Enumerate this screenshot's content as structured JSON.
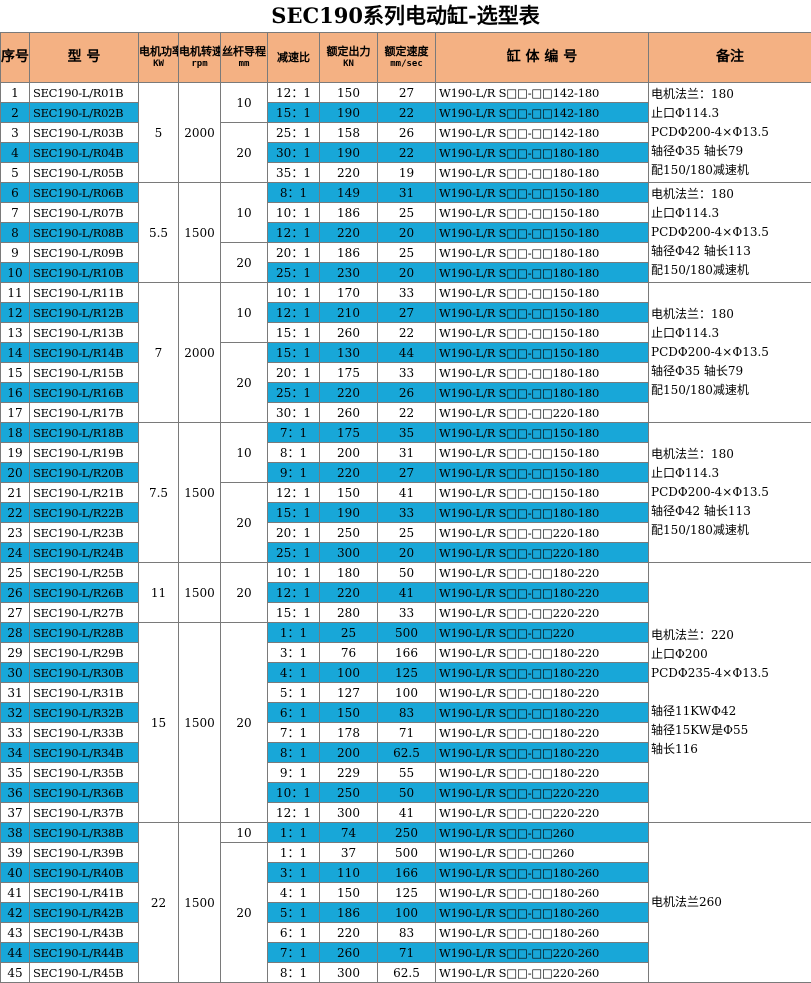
{
  "title": "SEC190系列电动缸-选型表",
  "headers": {
    "index": "序号",
    "model": "型  号",
    "power": "电机功率",
    "power_unit": "KW",
    "speed": "电机转速",
    "speed_unit": "rpm",
    "lead": "丝杆导程",
    "lead_unit": "mm",
    "ratio": "减速比",
    "force": "额定出力",
    "force_unit": "KN",
    "velocity": "额定速度",
    "velocity_unit": "mm/sec",
    "code": "缸 体 编 号",
    "note": "备注"
  },
  "highlight_color": "#18a7d8",
  "header_color": "#f4b183",
  "rows": [
    {
      "no": "1",
      "model": "SEC190-L/R01B",
      "ratio": "12：1",
      "force": "150",
      "vel": "27",
      "code": "W190-L/R S□□-□□142-180",
      "hl": false
    },
    {
      "no": "2",
      "model": "SEC190-L/R02B",
      "ratio": "15：1",
      "force": "190",
      "vel": "22",
      "code": "W190-L/R S□□-□□142-180",
      "hl": true
    },
    {
      "no": "3",
      "model": "SEC190-L/R03B",
      "ratio": "25：1",
      "force": "158",
      "vel": "26",
      "code": "W190-L/R S□□-□□142-180",
      "hl": false
    },
    {
      "no": "4",
      "model": "SEC190-L/R04B",
      "ratio": "30：1",
      "force": "190",
      "vel": "22",
      "code": "W190-L/R S□□-□□180-180",
      "hl": true
    },
    {
      "no": "5",
      "model": "SEC190-L/R05B",
      "ratio": "35：1",
      "force": "220",
      "vel": "19",
      "code": "W190-L/R S□□-□□180-180",
      "hl": false
    },
    {
      "no": "6",
      "model": "SEC190-L/R06B",
      "ratio": "8：1",
      "force": "149",
      "vel": "31",
      "code": "W190-L/R S□□-□□150-180",
      "hl": true
    },
    {
      "no": "7",
      "model": "SEC190-L/R07B",
      "ratio": "10：1",
      "force": "186",
      "vel": "25",
      "code": "W190-L/R S□□-□□150-180",
      "hl": false
    },
    {
      "no": "8",
      "model": "SEC190-L/R08B",
      "ratio": "12：1",
      "force": "220",
      "vel": "20",
      "code": "W190-L/R S□□-□□150-180",
      "hl": true
    },
    {
      "no": "9",
      "model": "SEC190-L/R09B",
      "ratio": "20：1",
      "force": "186",
      "vel": "25",
      "code": "W190-L/R S□□-□□180-180",
      "hl": false
    },
    {
      "no": "10",
      "model": "SEC190-L/R10B",
      "ratio": "25：1",
      "force": "230",
      "vel": "20",
      "code": "W190-L/R S□□-□□180-180",
      "hl": true
    },
    {
      "no": "11",
      "model": "SEC190-L/R11B",
      "ratio": "10：1",
      "force": "170",
      "vel": "33",
      "code": "W190-L/R S□□-□□150-180",
      "hl": false
    },
    {
      "no": "12",
      "model": "SEC190-L/R12B",
      "ratio": "12：1",
      "force": "210",
      "vel": "27",
      "code": "W190-L/R S□□-□□150-180",
      "hl": true
    },
    {
      "no": "13",
      "model": "SEC190-L/R13B",
      "ratio": "15：1",
      "force": "260",
      "vel": "22",
      "code": "W190-L/R S□□-□□150-180",
      "hl": false
    },
    {
      "no": "14",
      "model": "SEC190-L/R14B",
      "ratio": "15：1",
      "force": "130",
      "vel": "44",
      "code": "W190-L/R S□□-□□150-180",
      "hl": true
    },
    {
      "no": "15",
      "model": "SEC190-L/R15B",
      "ratio": "20：1",
      "force": "175",
      "vel": "33",
      "code": "W190-L/R S□□-□□180-180",
      "hl": false
    },
    {
      "no": "16",
      "model": "SEC190-L/R16B",
      "ratio": "25：1",
      "force": "220",
      "vel": "26",
      "code": "W190-L/R S□□-□□180-180",
      "hl": true
    },
    {
      "no": "17",
      "model": "SEC190-L/R17B",
      "ratio": "30：1",
      "force": "260",
      "vel": "22",
      "code": "W190-L/R S□□-□□220-180",
      "hl": false
    },
    {
      "no": "18",
      "model": "SEC190-L/R18B",
      "ratio": "7：1",
      "force": "175",
      "vel": "35",
      "code": "W190-L/R S□□-□□150-180",
      "hl": true
    },
    {
      "no": "19",
      "model": "SEC190-L/R19B",
      "ratio": "8：1",
      "force": "200",
      "vel": "31",
      "code": "W190-L/R S□□-□□150-180",
      "hl": false
    },
    {
      "no": "20",
      "model": "SEC190-L/R20B",
      "ratio": "9：1",
      "force": "220",
      "vel": "27",
      "code": "W190-L/R S□□-□□150-180",
      "hl": true
    },
    {
      "no": "21",
      "model": "SEC190-L/R21B",
      "ratio": "12：1",
      "force": "150",
      "vel": "41",
      "code": "W190-L/R S□□-□□150-180",
      "hl": false
    },
    {
      "no": "22",
      "model": "SEC190-L/R22B",
      "ratio": "15：1",
      "force": "190",
      "vel": "33",
      "code": "W190-L/R S□□-□□180-180",
      "hl": true
    },
    {
      "no": "23",
      "model": "SEC190-L/R23B",
      "ratio": "20：1",
      "force": "250",
      "vel": "25",
      "code": "W190-L/R S□□-□□220-180",
      "hl": false
    },
    {
      "no": "24",
      "model": "SEC190-L/R24B",
      "ratio": "25：1",
      "force": "300",
      "vel": "20",
      "code": "W190-L/R S□□-□□220-180",
      "hl": true
    },
    {
      "no": "25",
      "model": "SEC190-L/R25B",
      "ratio": "10：1",
      "force": "180",
      "vel": "50",
      "code": "W190-L/R S□□-□□180-220",
      "hl": false
    },
    {
      "no": "26",
      "model": "SEC190-L/R26B",
      "ratio": "12：1",
      "force": "220",
      "vel": "41",
      "code": "W190-L/R S□□-□□180-220",
      "hl": true
    },
    {
      "no": "27",
      "model": "SEC190-L/R27B",
      "ratio": "15：1",
      "force": "280",
      "vel": "33",
      "code": "W190-L/R S□□-□□220-220",
      "hl": false
    },
    {
      "no": "28",
      "model": "SEC190-L/R28B",
      "ratio": "1：1",
      "force": "25",
      "vel": "500",
      "code": "W190-L/R S□□-□□220",
      "hl": true
    },
    {
      "no": "29",
      "model": "SEC190-L/R29B",
      "ratio": "3：1",
      "force": "76",
      "vel": "166",
      "code": "W190-L/R S□□-□□180-220",
      "hl": false
    },
    {
      "no": "30",
      "model": "SEC190-L/R30B",
      "ratio": "4：1",
      "force": "100",
      "vel": "125",
      "code": "W190-L/R S□□-□□180-220",
      "hl": true
    },
    {
      "no": "31",
      "model": "SEC190-L/R31B",
      "ratio": "5：1",
      "force": "127",
      "vel": "100",
      "code": "W190-L/R S□□-□□180-220",
      "hl": false
    },
    {
      "no": "32",
      "model": "SEC190-L/R32B",
      "ratio": "6：1",
      "force": "150",
      "vel": "83",
      "code": "W190-L/R S□□-□□180-220",
      "hl": true
    },
    {
      "no": "33",
      "model": "SEC190-L/R33B",
      "ratio": "7：1",
      "force": "178",
      "vel": "71",
      "code": "W190-L/R S□□-□□180-220",
      "hl": false
    },
    {
      "no": "34",
      "model": "SEC190-L/R34B",
      "ratio": "8：1",
      "force": "200",
      "vel": "62.5",
      "code": "W190-L/R S□□-□□180-220",
      "hl": true
    },
    {
      "no": "35",
      "model": "SEC190-L/R35B",
      "ratio": "9：1",
      "force": "229",
      "vel": "55",
      "code": "W190-L/R S□□-□□180-220",
      "hl": false
    },
    {
      "no": "36",
      "model": "SEC190-L/R36B",
      "ratio": "10：1",
      "force": "250",
      "vel": "50",
      "code": "W190-L/R S□□-□□220-220",
      "hl": true
    },
    {
      "no": "37",
      "model": "SEC190-L/R37B",
      "ratio": "12：1",
      "force": "300",
      "vel": "41",
      "code": "W190-L/R S□□-□□220-220",
      "hl": false
    },
    {
      "no": "38",
      "model": "SEC190-L/R38B",
      "ratio": "1：1",
      "force": "74",
      "vel": "250",
      "code": "W190-L/R S□□-□□260",
      "hl": true
    },
    {
      "no": "39",
      "model": "SEC190-L/R39B",
      "ratio": "1：1",
      "force": "37",
      "vel": "500",
      "code": "W190-L/R S□□-□□260",
      "hl": false
    },
    {
      "no": "40",
      "model": "SEC190-L/R40B",
      "ratio": "3：1",
      "force": "110",
      "vel": "166",
      "code": "W190-L/R S□□-□□180-260",
      "hl": true
    },
    {
      "no": "41",
      "model": "SEC190-L/R41B",
      "ratio": "4：1",
      "force": "150",
      "vel": "125",
      "code": "W190-L/R S□□-□□180-260",
      "hl": false
    },
    {
      "no": "42",
      "model": "SEC190-L/R42B",
      "ratio": "5：1",
      "force": "186",
      "vel": "100",
      "code": "W190-L/R S□□-□□180-260",
      "hl": true
    },
    {
      "no": "43",
      "model": "SEC190-L/R43B",
      "ratio": "6：1",
      "force": "220",
      "vel": "83",
      "code": "W190-L/R S□□-□□180-260",
      "hl": false
    },
    {
      "no": "44",
      "model": "SEC190-L/R44B",
      "ratio": "7：1",
      "force": "260",
      "vel": "71",
      "code": "W190-L/R S□□-□□220-260",
      "hl": true
    },
    {
      "no": "45",
      "model": "SEC190-L/R45B",
      "ratio": "8：1",
      "force": "300",
      "vel": "62.5",
      "code": "W190-L/R S□□-□□220-260",
      "hl": false
    }
  ],
  "groups": [
    {
      "power": "5",
      "speed": "2000",
      "start": 0,
      "len": 5,
      "leads": [
        {
          "v": "10",
          "len": 2
        },
        {
          "v": "20",
          "len": 3
        }
      ],
      "note": "电机法兰：180\n止口Φ114.3\nPCDΦ200-4×Φ13.5\n轴径Φ35 轴长79\n配150/180减速机",
      "note_len": 5
    },
    {
      "power": "5.5",
      "speed": "1500",
      "start": 5,
      "len": 5,
      "leads": [
        {
          "v": "10",
          "len": 3
        },
        {
          "v": "20",
          "len": 2
        }
      ],
      "note": "电机法兰：180\n止口Φ114.3\nPCDΦ200-4×Φ13.5\n轴径Φ42 轴长113\n配150/180减速机",
      "note_len": 5
    },
    {
      "power": "7",
      "speed": "2000",
      "start": 10,
      "len": 7,
      "leads": [
        {
          "v": "10",
          "len": 3
        },
        {
          "v": "20",
          "len": 4
        }
      ],
      "note": "电机法兰：180\n止口Φ114.3\nPCDΦ200-4×Φ13.5\n轴径Φ35 轴长79\n配150/180减速机",
      "note_len": 7
    },
    {
      "power": "7.5",
      "speed": "1500",
      "start": 17,
      "len": 7,
      "leads": [
        {
          "v": "10",
          "len": 3
        },
        {
          "v": "20",
          "len": 4
        }
      ],
      "note": "电机法兰：180\n止口Φ114.3\nPCDΦ200-4×Φ13.5\n轴径Φ42 轴长113\n配150/180减速机",
      "note_len": 7
    },
    {
      "power": "11",
      "speed": "1500",
      "start": 24,
      "len": 3,
      "leads": [
        {
          "v": "20",
          "len": 3
        }
      ],
      "note": "电机法兰：220\n止口Φ200\nPCDΦ235-4×Φ13.5\n\n轴径11KWΦ42\n轴径15KW是Φ55\n轴长116",
      "note_len": 13
    },
    {
      "power": "15",
      "speed": "1500",
      "start": 27,
      "len": 10,
      "leads": [
        {
          "v": "20",
          "len": 10
        }
      ],
      "note": null,
      "note_len": 0
    },
    {
      "power": "22",
      "speed": "1500",
      "start": 37,
      "len": 8,
      "leads": [
        {
          "v": "10",
          "len": 1
        },
        {
          "v": "20",
          "len": 7
        }
      ],
      "note": "电机法兰260",
      "note_len": 8
    }
  ]
}
